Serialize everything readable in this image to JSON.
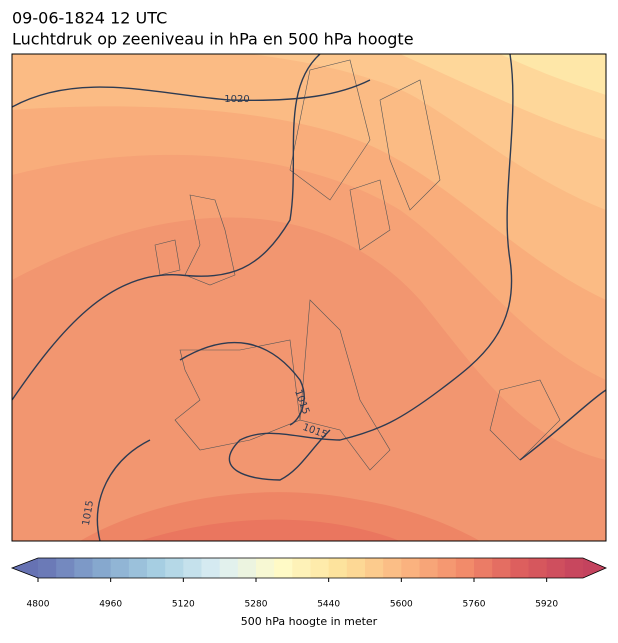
{
  "header": {
    "title": "09-06-1824 12 UTC",
    "subtitle": "Luchtdruk op zeeniveau in hPa en 500 hPa hoogte"
  },
  "map": {
    "isobar_labels": [
      "1020",
      "1015",
      "1015",
      "1015"
    ]
  },
  "colorbar": {
    "label": "500 hPa hoogte in meter",
    "clim": [
      4800,
      6000
    ],
    "step": 40,
    "ticks": [
      4800,
      4960,
      5120,
      5280,
      5440,
      5600,
      5760,
      5920
    ],
    "colors": [
      "#6672b3",
      "#84a6cd",
      "#a8d0e3",
      "#ddeff4",
      "#fffbc8",
      "#fde29b",
      "#fbb882",
      "#f38d6b",
      "#dc5d5d",
      "#c4435e"
    ]
  }
}
